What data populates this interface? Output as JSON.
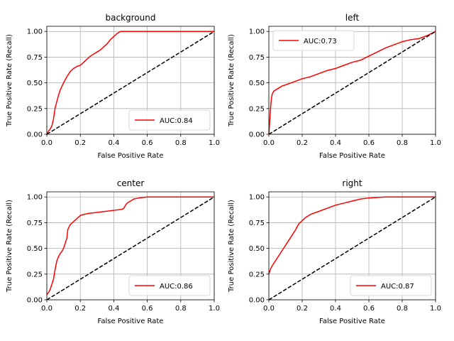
{
  "chart_data": [
    {
      "type": "line",
      "title": "background",
      "xlabel": "False Positive Rate",
      "ylabel": "True Positive Rate (Recall)",
      "xlim": [
        0,
        1.0
      ],
      "ylim": [
        0,
        1.05
      ],
      "xticks": [
        "0.0",
        "0.2",
        "0.4",
        "0.6",
        "0.8",
        "1.0"
      ],
      "yticks": [
        "0.00",
        "0.25",
        "0.50",
        "0.75",
        "1.00"
      ],
      "grid": true,
      "legend": "lower-right",
      "series": [
        {
          "name": "AUC:0.84",
          "color": "#ff0000",
          "x": [
            0.0,
            0.01,
            0.02,
            0.03,
            0.04,
            0.05,
            0.06,
            0.07,
            0.08,
            0.1,
            0.12,
            0.14,
            0.16,
            0.18,
            0.2,
            0.22,
            0.24,
            0.26,
            0.28,
            0.3,
            0.32,
            0.34,
            0.36,
            0.38,
            0.4,
            0.42,
            0.44,
            0.46,
            0.5,
            0.6,
            0.7,
            0.8,
            0.9,
            1.0
          ],
          "y": [
            0.0,
            0.03,
            0.05,
            0.08,
            0.15,
            0.26,
            0.32,
            0.38,
            0.43,
            0.5,
            0.56,
            0.61,
            0.64,
            0.66,
            0.67,
            0.7,
            0.73,
            0.76,
            0.78,
            0.8,
            0.82,
            0.85,
            0.88,
            0.92,
            0.95,
            0.98,
            1.0,
            1.0,
            1.0,
            1.0,
            1.0,
            1.0,
            1.0,
            1.0
          ]
        },
        {
          "name": "",
          "style": "dashed",
          "color": "#000000",
          "x": [
            0,
            1
          ],
          "y": [
            0,
            1
          ]
        }
      ]
    },
    {
      "type": "line",
      "title": "left",
      "xlabel": "False Positive Rate",
      "ylabel": "True Positive Rate (Recall)",
      "xlim": [
        0,
        1.0
      ],
      "ylim": [
        0,
        1.05
      ],
      "xticks": [
        "0.0",
        "0.2",
        "0.4",
        "0.6",
        "0.8",
        "1.0"
      ],
      "yticks": [
        "0.00",
        "0.25",
        "0.50",
        "0.75",
        "1.00"
      ],
      "grid": true,
      "legend": "upper-left",
      "series": [
        {
          "name": "AUC:0.73",
          "color": "#ff0000",
          "x": [
            0.0,
            0.005,
            0.01,
            0.015,
            0.02,
            0.03,
            0.05,
            0.08,
            0.1,
            0.15,
            0.2,
            0.25,
            0.3,
            0.35,
            0.4,
            0.45,
            0.5,
            0.55,
            0.6,
            0.65,
            0.7,
            0.75,
            0.8,
            0.85,
            0.9,
            0.95,
            1.0
          ],
          "y": [
            0.0,
            0.12,
            0.25,
            0.34,
            0.39,
            0.42,
            0.44,
            0.47,
            0.48,
            0.51,
            0.54,
            0.56,
            0.59,
            0.62,
            0.64,
            0.67,
            0.7,
            0.72,
            0.76,
            0.8,
            0.84,
            0.87,
            0.9,
            0.92,
            0.93,
            0.96,
            1.0
          ]
        },
        {
          "name": "",
          "style": "dashed",
          "color": "#000000",
          "x": [
            0,
            1
          ],
          "y": [
            0,
            1
          ]
        }
      ]
    },
    {
      "type": "line",
      "title": "center",
      "xlabel": "False Positive Rate",
      "ylabel": "True Positive Rate (Recall)",
      "xlim": [
        0,
        1.0
      ],
      "ylim": [
        0,
        1.05
      ],
      "xticks": [
        "0.0",
        "0.2",
        "0.4",
        "0.6",
        "0.8",
        "1.0"
      ],
      "yticks": [
        "0.00",
        "0.25",
        "0.50",
        "0.75",
        "1.00"
      ],
      "grid": true,
      "legend": "lower-right",
      "series": [
        {
          "name": "AUC:0.86",
          "color": "#ff0000",
          "x": [
            0.0,
            0.01,
            0.02,
            0.03,
            0.04,
            0.05,
            0.06,
            0.07,
            0.08,
            0.09,
            0.1,
            0.11,
            0.12,
            0.125,
            0.13,
            0.14,
            0.16,
            0.18,
            0.2,
            0.22,
            0.25,
            0.3,
            0.35,
            0.4,
            0.45,
            0.46,
            0.47,
            0.48,
            0.5,
            0.52,
            0.55,
            0.6,
            0.7,
            0.8,
            0.9,
            1.0
          ],
          "y": [
            0.05,
            0.07,
            0.1,
            0.15,
            0.2,
            0.3,
            0.38,
            0.42,
            0.45,
            0.47,
            0.5,
            0.55,
            0.6,
            0.68,
            0.7,
            0.73,
            0.76,
            0.79,
            0.82,
            0.83,
            0.84,
            0.85,
            0.86,
            0.87,
            0.88,
            0.89,
            0.92,
            0.94,
            0.96,
            0.98,
            0.99,
            1.0,
            1.0,
            1.0,
            1.0,
            1.0
          ]
        },
        {
          "name": "",
          "style": "dashed",
          "color": "#000000",
          "x": [
            0,
            1
          ],
          "y": [
            0,
            1
          ]
        }
      ]
    },
    {
      "type": "line",
      "title": "right",
      "xlabel": "False Positive Rate",
      "ylabel": "True Positive Rate (Recall)",
      "xlim": [
        0,
        1.0
      ],
      "ylim": [
        0,
        1.05
      ],
      "xticks": [
        "0.0",
        "0.2",
        "0.4",
        "0.6",
        "0.8",
        "1.0"
      ],
      "yticks": [
        "0.00",
        "0.25",
        "0.50",
        "0.75",
        "1.00"
      ],
      "grid": true,
      "legend": "lower-right",
      "series": [
        {
          "name": "AUC:0.87",
          "color": "#ff0000",
          "x": [
            0.0,
            0.01,
            0.02,
            0.04,
            0.06,
            0.08,
            0.1,
            0.12,
            0.14,
            0.16,
            0.18,
            0.2,
            0.22,
            0.25,
            0.3,
            0.35,
            0.4,
            0.45,
            0.5,
            0.55,
            0.6,
            0.7,
            0.8,
            0.9,
            1.0
          ],
          "y": [
            0.25,
            0.3,
            0.33,
            0.38,
            0.43,
            0.48,
            0.53,
            0.58,
            0.63,
            0.68,
            0.74,
            0.77,
            0.8,
            0.83,
            0.86,
            0.89,
            0.92,
            0.94,
            0.96,
            0.98,
            0.99,
            1.0,
            1.0,
            1.0,
            1.0
          ]
        },
        {
          "name": "",
          "style": "dashed",
          "color": "#000000",
          "x": [
            0,
            1
          ],
          "y": [
            0,
            1
          ]
        }
      ]
    }
  ]
}
